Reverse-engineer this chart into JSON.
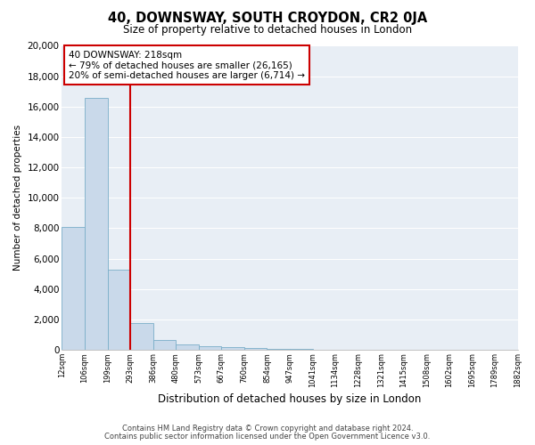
{
  "title": "40, DOWNSWAY, SOUTH CROYDON, CR2 0JA",
  "subtitle": "Size of property relative to detached houses in London",
  "xlabel": "Distribution of detached houses by size in London",
  "ylabel": "Number of detached properties",
  "bar_values": [
    8100,
    16600,
    5300,
    1750,
    650,
    350,
    250,
    180,
    130,
    80,
    50,
    30,
    20,
    15,
    10,
    8,
    5,
    4,
    3,
    2
  ],
  "bar_labels": [
    "12sqm",
    "106sqm",
    "199sqm",
    "293sqm",
    "386sqm",
    "480sqm",
    "573sqm",
    "667sqm",
    "760sqm",
    "854sqm",
    "947sqm",
    "1041sqm",
    "1134sqm",
    "1228sqm",
    "1321sqm",
    "1415sqm",
    "1508sqm",
    "1602sqm",
    "1695sqm",
    "1789sqm",
    "1882sqm"
  ],
  "bar_color": "#c9d9ea",
  "bar_edgecolor": "#7aaec8",
  "vline_color": "#cc0000",
  "vline_position": 2.0,
  "annotation_box_text": "40 DOWNSWAY: 218sqm\n← 79% of detached houses are smaller (26,165)\n20% of semi-detached houses are larger (6,714) →",
  "ylim": [
    0,
    20000
  ],
  "yticks": [
    0,
    2000,
    4000,
    6000,
    8000,
    10000,
    12000,
    14000,
    16000,
    18000,
    20000
  ],
  "footer_line1": "Contains HM Land Registry data © Crown copyright and database right 2024.",
  "footer_line2": "Contains public sector information licensed under the Open Government Licence v3.0.",
  "bg_color": "#ffffff",
  "plot_bg_color": "#e8eef5"
}
